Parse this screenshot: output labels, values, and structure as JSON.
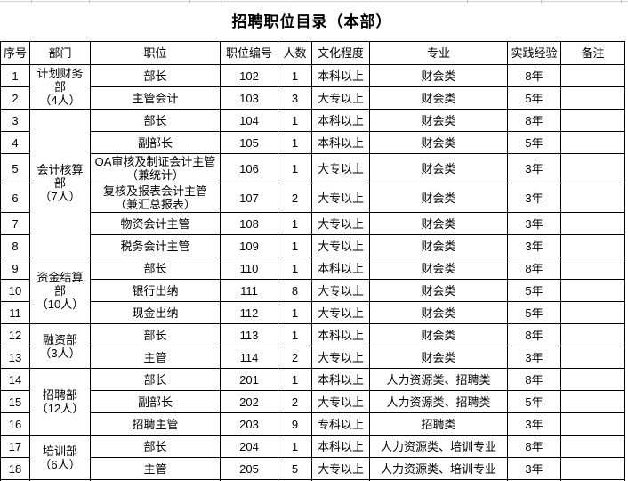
{
  "title": "招聘职位目录（本部）",
  "columns": [
    "序号",
    "部门",
    "职位",
    "职位编号",
    "人数",
    "文化程度",
    "专业",
    "实践经验",
    "备注"
  ],
  "rows": [
    {
      "no": "1",
      "dept": "计划财务\n部\n（4人）",
      "dept_rows": 2,
      "position": "部长",
      "code": "102",
      "count": "1",
      "education": "本科以上",
      "major": "财会类",
      "experience": "8年",
      "note": ""
    },
    {
      "no": "2",
      "position": "主管会计",
      "code": "103",
      "count": "3",
      "education": "大专以上",
      "major": "财会类",
      "experience": "5年",
      "note": ""
    },
    {
      "no": "3",
      "dept": "会计核算\n部\n（7人）",
      "dept_rows": 6,
      "position": "部长",
      "code": "104",
      "count": "1",
      "education": "本科以上",
      "major": "财会类",
      "experience": "8年",
      "note": ""
    },
    {
      "no": "4",
      "position": "副部长",
      "code": "105",
      "count": "1",
      "education": "本科以上",
      "major": "财会类",
      "experience": "5年",
      "note": ""
    },
    {
      "no": "5",
      "tall": true,
      "position": "OA审核及制证会计主管\n（兼统计）",
      "code": "106",
      "count": "1",
      "education": "大专以上",
      "major": "财会类",
      "experience": "3年",
      "note": ""
    },
    {
      "no": "6",
      "tall": true,
      "position": "复核及报表会计主管\n（兼汇总报表）",
      "code": "107",
      "count": "2",
      "education": "大专以上",
      "major": "财会类",
      "experience": "3年",
      "note": ""
    },
    {
      "no": "7",
      "position": "物资会计主管",
      "code": "108",
      "count": "1",
      "education": "大专以上",
      "major": "财会类",
      "experience": "3年",
      "note": ""
    },
    {
      "no": "8",
      "position": "税务会计主管",
      "code": "109",
      "count": "1",
      "education": "大专以上",
      "major": "财会类",
      "experience": "3年",
      "note": ""
    },
    {
      "no": "9",
      "dept": "资金结算\n部\n（10人）",
      "dept_rows": 3,
      "position": "部长",
      "code": "110",
      "count": "1",
      "education": "本科以上",
      "major": "财会类",
      "experience": "8年",
      "note": ""
    },
    {
      "no": "10",
      "position": "银行出纳",
      "code": "111",
      "count": "8",
      "education": "大专以上",
      "major": "财会类",
      "experience": "5年",
      "note": ""
    },
    {
      "no": "11",
      "position": "现金出纳",
      "code": "112",
      "count": "1",
      "education": "大专以上",
      "major": "财会类",
      "experience": "5年",
      "note": ""
    },
    {
      "no": "12",
      "dept": "融资部\n（3人）",
      "dept_rows": 2,
      "position": "部长",
      "code": "113",
      "count": "1",
      "education": "本科以上",
      "major": "财会类",
      "experience": "8年",
      "note": ""
    },
    {
      "no": "13",
      "position": "主管",
      "code": "114",
      "count": "2",
      "education": "大专以上",
      "major": "财会类",
      "experience": "3年",
      "note": ""
    },
    {
      "no": "14",
      "dept": "招聘部\n（12人）",
      "dept_rows": 3,
      "position": "部长",
      "code": "201",
      "count": "1",
      "education": "本科以上",
      "major": "人力资源类、招聘类",
      "experience": "8年",
      "note": ""
    },
    {
      "no": "15",
      "position": "副部长",
      "code": "202",
      "count": "2",
      "education": "大专以上",
      "major": "人力资源类、招聘类",
      "experience": "5年",
      "note": ""
    },
    {
      "no": "16",
      "position": "招聘主管",
      "code": "203",
      "count": "9",
      "education": "专科以上",
      "major": "招聘类",
      "experience": "3年",
      "note": ""
    },
    {
      "no": "17",
      "dept": "培训部\n（6人）",
      "dept_rows": 2,
      "position": "部长",
      "code": "204",
      "count": "1",
      "education": "本科以上",
      "major": "人力资源类、培训专业",
      "experience": "8年",
      "note": ""
    },
    {
      "no": "18",
      "position": "主管",
      "code": "205",
      "count": "5",
      "education": "大专以上",
      "major": "人力资源类、培训专业",
      "experience": "3年",
      "note": ""
    }
  ],
  "colors": {
    "border": "#000000",
    "text": "#000000",
    "background": "#ffffff",
    "gridline_remnant": "#d2d2d2"
  }
}
